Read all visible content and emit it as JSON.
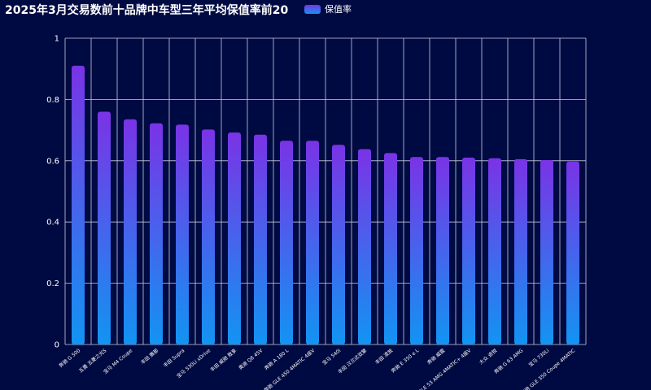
{
  "chart_data": {
    "type": "bar",
    "title": "2025年3月交易数前十品牌中车型三年平均保值率前20",
    "legend": {
      "label": "保值率",
      "position": "top"
    },
    "categories": [
      "奔驰 G 500",
      "五菱 五菱之光S",
      "宝马 M4 Coupe",
      "丰田 赛那",
      "丰田 Supra",
      "宝马 530Li xDrive",
      "丰田 威驰 致享",
      "奥迪 Q8 45V",
      "奔驰 A 180 L",
      "奔驰 GLE 450 4MATIC 4座V",
      "宝马 540i",
      "丰田 汉兰达双擎",
      "丰田 凌放",
      "奔驰 E 350 e L",
      "奔驰 威霆",
      "奔驰 GLE 53 AMG 4MATIC+ 4座V",
      "大众 途锐",
      "奔驰 G 63 AMG",
      "宝马 730Li",
      "奔驰 GLE 350 Coupe 4MATIC"
    ],
    "values": [
      0.91,
      0.76,
      0.735,
      0.722,
      0.718,
      0.702,
      0.692,
      0.685,
      0.665,
      0.665,
      0.652,
      0.638,
      0.625,
      0.612,
      0.612,
      0.61,
      0.608,
      0.605,
      0.602,
      0.597
    ],
    "ylim": [
      0,
      1
    ],
    "yticks": [
      "0",
      "0.2",
      "0.4",
      "0.6",
      "0.8",
      "1"
    ],
    "grid": true,
    "colors": {
      "bar_top": "#7a33e6",
      "bar_bottom": "#1294f2",
      "grid": "#c8cce0",
      "background": "#000a42"
    }
  }
}
